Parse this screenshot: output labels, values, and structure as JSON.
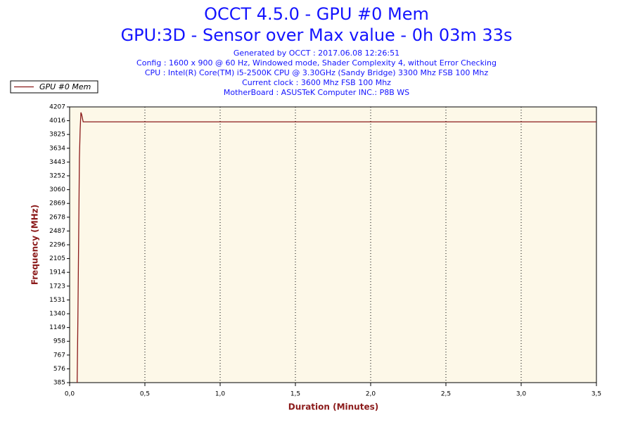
{
  "chart_data": {
    "type": "line",
    "title": "OCCT 4.5.0 - GPU #0 Mem",
    "subtitle": "GPU:3D - Sensor over Max value - 0h 03m 33s",
    "info": [
      "Generated by OCCT : 2017.06.08 12:26:51",
      "Config : 1600 x 900 @ 60 Hz, Windowed mode, Shader Complexity 4, without Error Checking",
      "CPU : Intel(R) Core(TM) i5-2500K CPU @ 3.30GHz (Sandy Bridge) 3300 Mhz FSB 100 Mhz",
      "Current clock : 3600 Mhz FSB 100 Mhz",
      "MotherBoard : ASUSTeK Computer INC.: P8B WS"
    ],
    "xlabel": "Duration (Minutes)",
    "ylabel": "Frequency (MHz)",
    "x": [
      0.05,
      0.055,
      0.06,
      0.065,
      0.07,
      0.075,
      0.08,
      0.09,
      3.5
    ],
    "series": [
      {
        "name": "GPU #0 Mem",
        "color": "#8b1a1a",
        "values": [
          385,
          1300,
          2400,
          3500,
          3900,
          4130,
          4100,
          4000,
          4000
        ]
      }
    ],
    "xlim": [
      0,
      3.5
    ],
    "xticks": [
      {
        "value": 0,
        "label": "0,0"
      },
      {
        "value": 0.5,
        "label": "0,5"
      },
      {
        "value": 1,
        "label": "1,0"
      },
      {
        "value": 1.5,
        "label": "1,5"
      },
      {
        "value": 2,
        "label": "2,0"
      },
      {
        "value": 2.5,
        "label": "2,5"
      },
      {
        "value": 3,
        "label": "3,0"
      },
      {
        "value": 3.5,
        "label": "3,5"
      }
    ],
    "ylim": [
      385,
      4207
    ],
    "yticks": [
      385,
      576,
      767,
      958,
      1149,
      1340,
      1531,
      1723,
      1914,
      2105,
      2296,
      2487,
      2678,
      2869,
      3060,
      3252,
      3443,
      3634,
      3825,
      4016,
      4207
    ],
    "grid": true,
    "legend": "top-left"
  }
}
